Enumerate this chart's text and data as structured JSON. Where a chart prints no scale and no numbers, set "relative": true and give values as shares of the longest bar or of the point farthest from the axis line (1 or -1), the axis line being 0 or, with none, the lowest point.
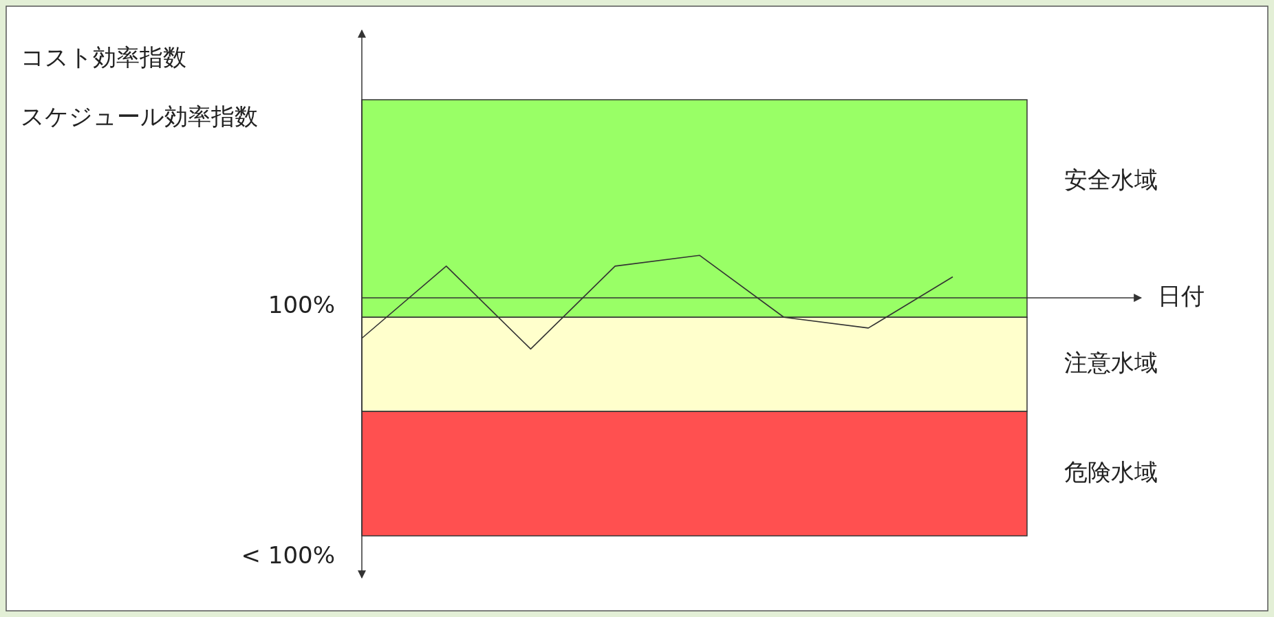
{
  "chart_data": {
    "type": "line",
    "relative": true,
    "categories": [
      null,
      null,
      null,
      null,
      null,
      null,
      null,
      null
    ],
    "series": [
      {
        "color": "#333333",
        "values": [
          -0.79,
          0.62,
          -1,
          0.62,
          0.83,
          -0.38,
          -0.59,
          0.41
        ]
      }
    ],
    "bands": [
      {
        "axis": "y",
        "from": -0.38,
        "to": 3.87,
        "label": "安全水域",
        "color": "#99ff66"
      },
      {
        "axis": "y",
        "from": -2.22,
        "to": -0.38,
        "label": "注意水域",
        "color": "#ffffcc"
      },
      {
        "axis": "y",
        "from": -4.65,
        "to": -2.22,
        "label": "危険水域",
        "color": "#ff5050"
      }
    ],
    "annotations": [
      "100%",
      "< 100%",
      "スケジュール効率指数",
      "日付",
      "コスト効率指数"
    ],
    "marker": "none",
    "line_style": "solid"
  }
}
